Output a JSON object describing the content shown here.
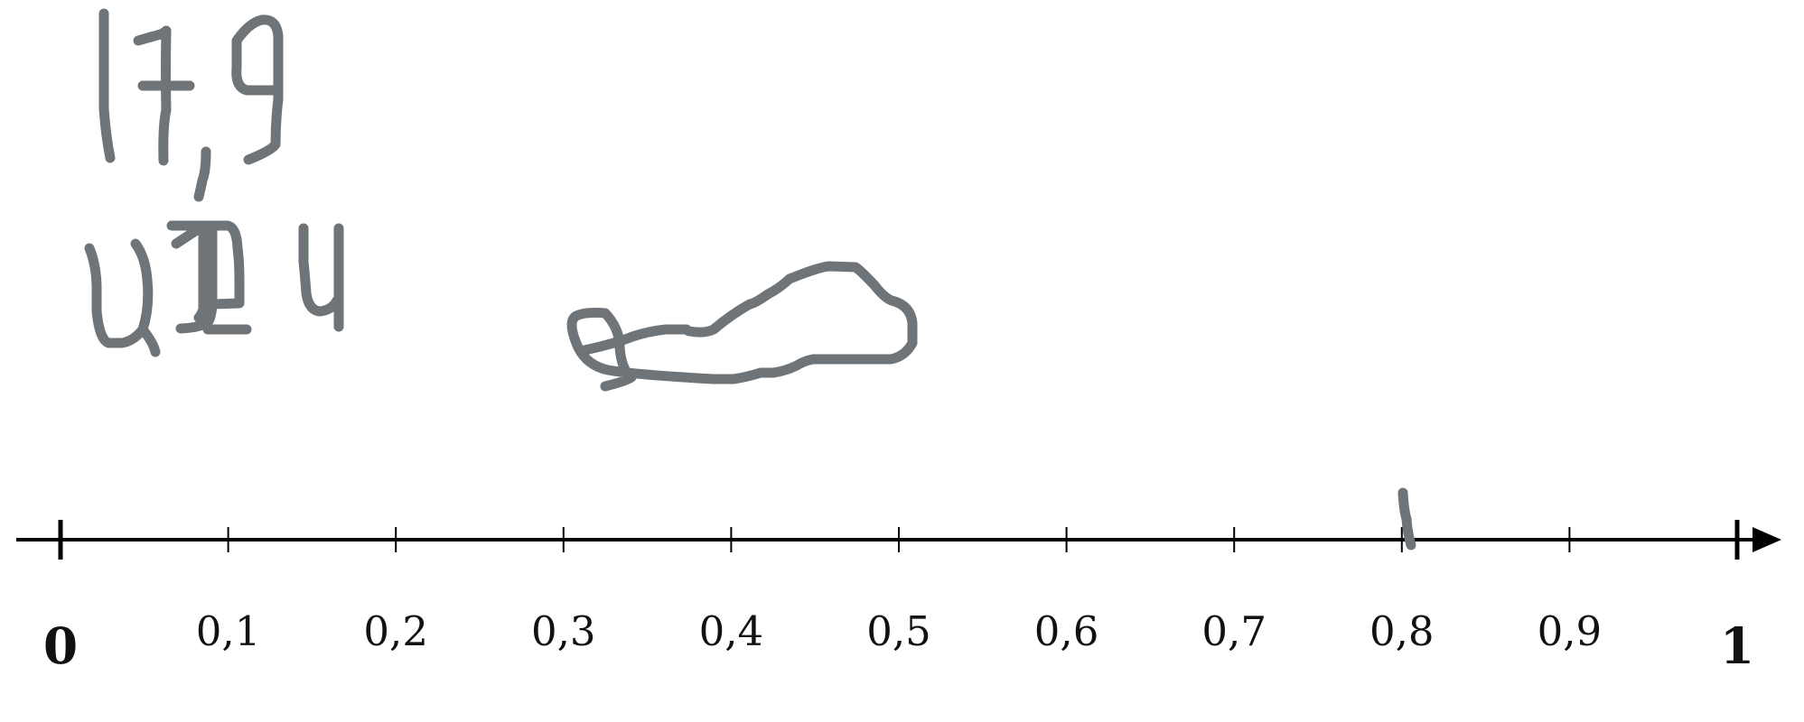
{
  "number_line": {
    "min": 0,
    "max": 1,
    "step": 0.1,
    "start_label": "0",
    "end_label": "1",
    "tick_labels": [
      "0,1",
      "0,2",
      "0,3",
      "0,4",
      "0,5",
      "0,6",
      "0,7",
      "0,8",
      "0,9"
    ],
    "line_color": "#000000"
  },
  "handwriting": {
    "ink_color": "#6f7479",
    "line1": "17,9",
    "line2": "4,124"
  }
}
